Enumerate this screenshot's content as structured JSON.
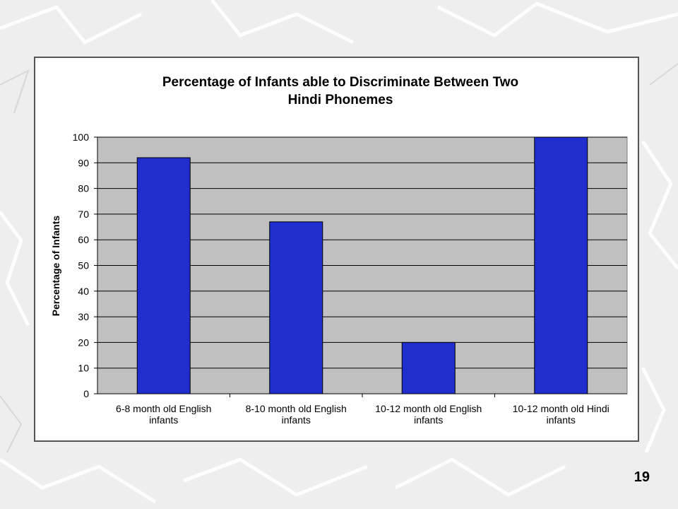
{
  "slide": {
    "page_number": "19"
  },
  "colors": {
    "background": "#eeeeee",
    "plot_area": "#c0c0c0",
    "bar_fill": "#1f2ecc",
    "bar_stroke": "#000000",
    "gridline": "#000000"
  },
  "chart_data": {
    "type": "bar",
    "title": "Percentage of Infants able to Discriminate Between Two Hindi Phonemes",
    "title_lines": [
      "Percentage of Infants able to Discriminate Between Two",
      "Hindi Phonemes"
    ],
    "xlabel": "",
    "ylabel": "Percentage of Infants",
    "ylim": [
      0,
      100
    ],
    "yticks": [
      0,
      10,
      20,
      30,
      40,
      50,
      60,
      70,
      80,
      90,
      100
    ],
    "grid": true,
    "legend": "none",
    "categories": [
      "6-8 month old English infants",
      "8-10 month old English infants",
      "10-12 month old English infants",
      "10-12 month old Hindi infants"
    ],
    "category_lines": [
      [
        "6-8 month old English",
        "infants"
      ],
      [
        "8-10 month old English",
        "infants"
      ],
      [
        "10-12 month old English",
        "infants"
      ],
      [
        "10-12 month old Hindi",
        "infants"
      ]
    ],
    "values": [
      92,
      67,
      20,
      100
    ]
  }
}
